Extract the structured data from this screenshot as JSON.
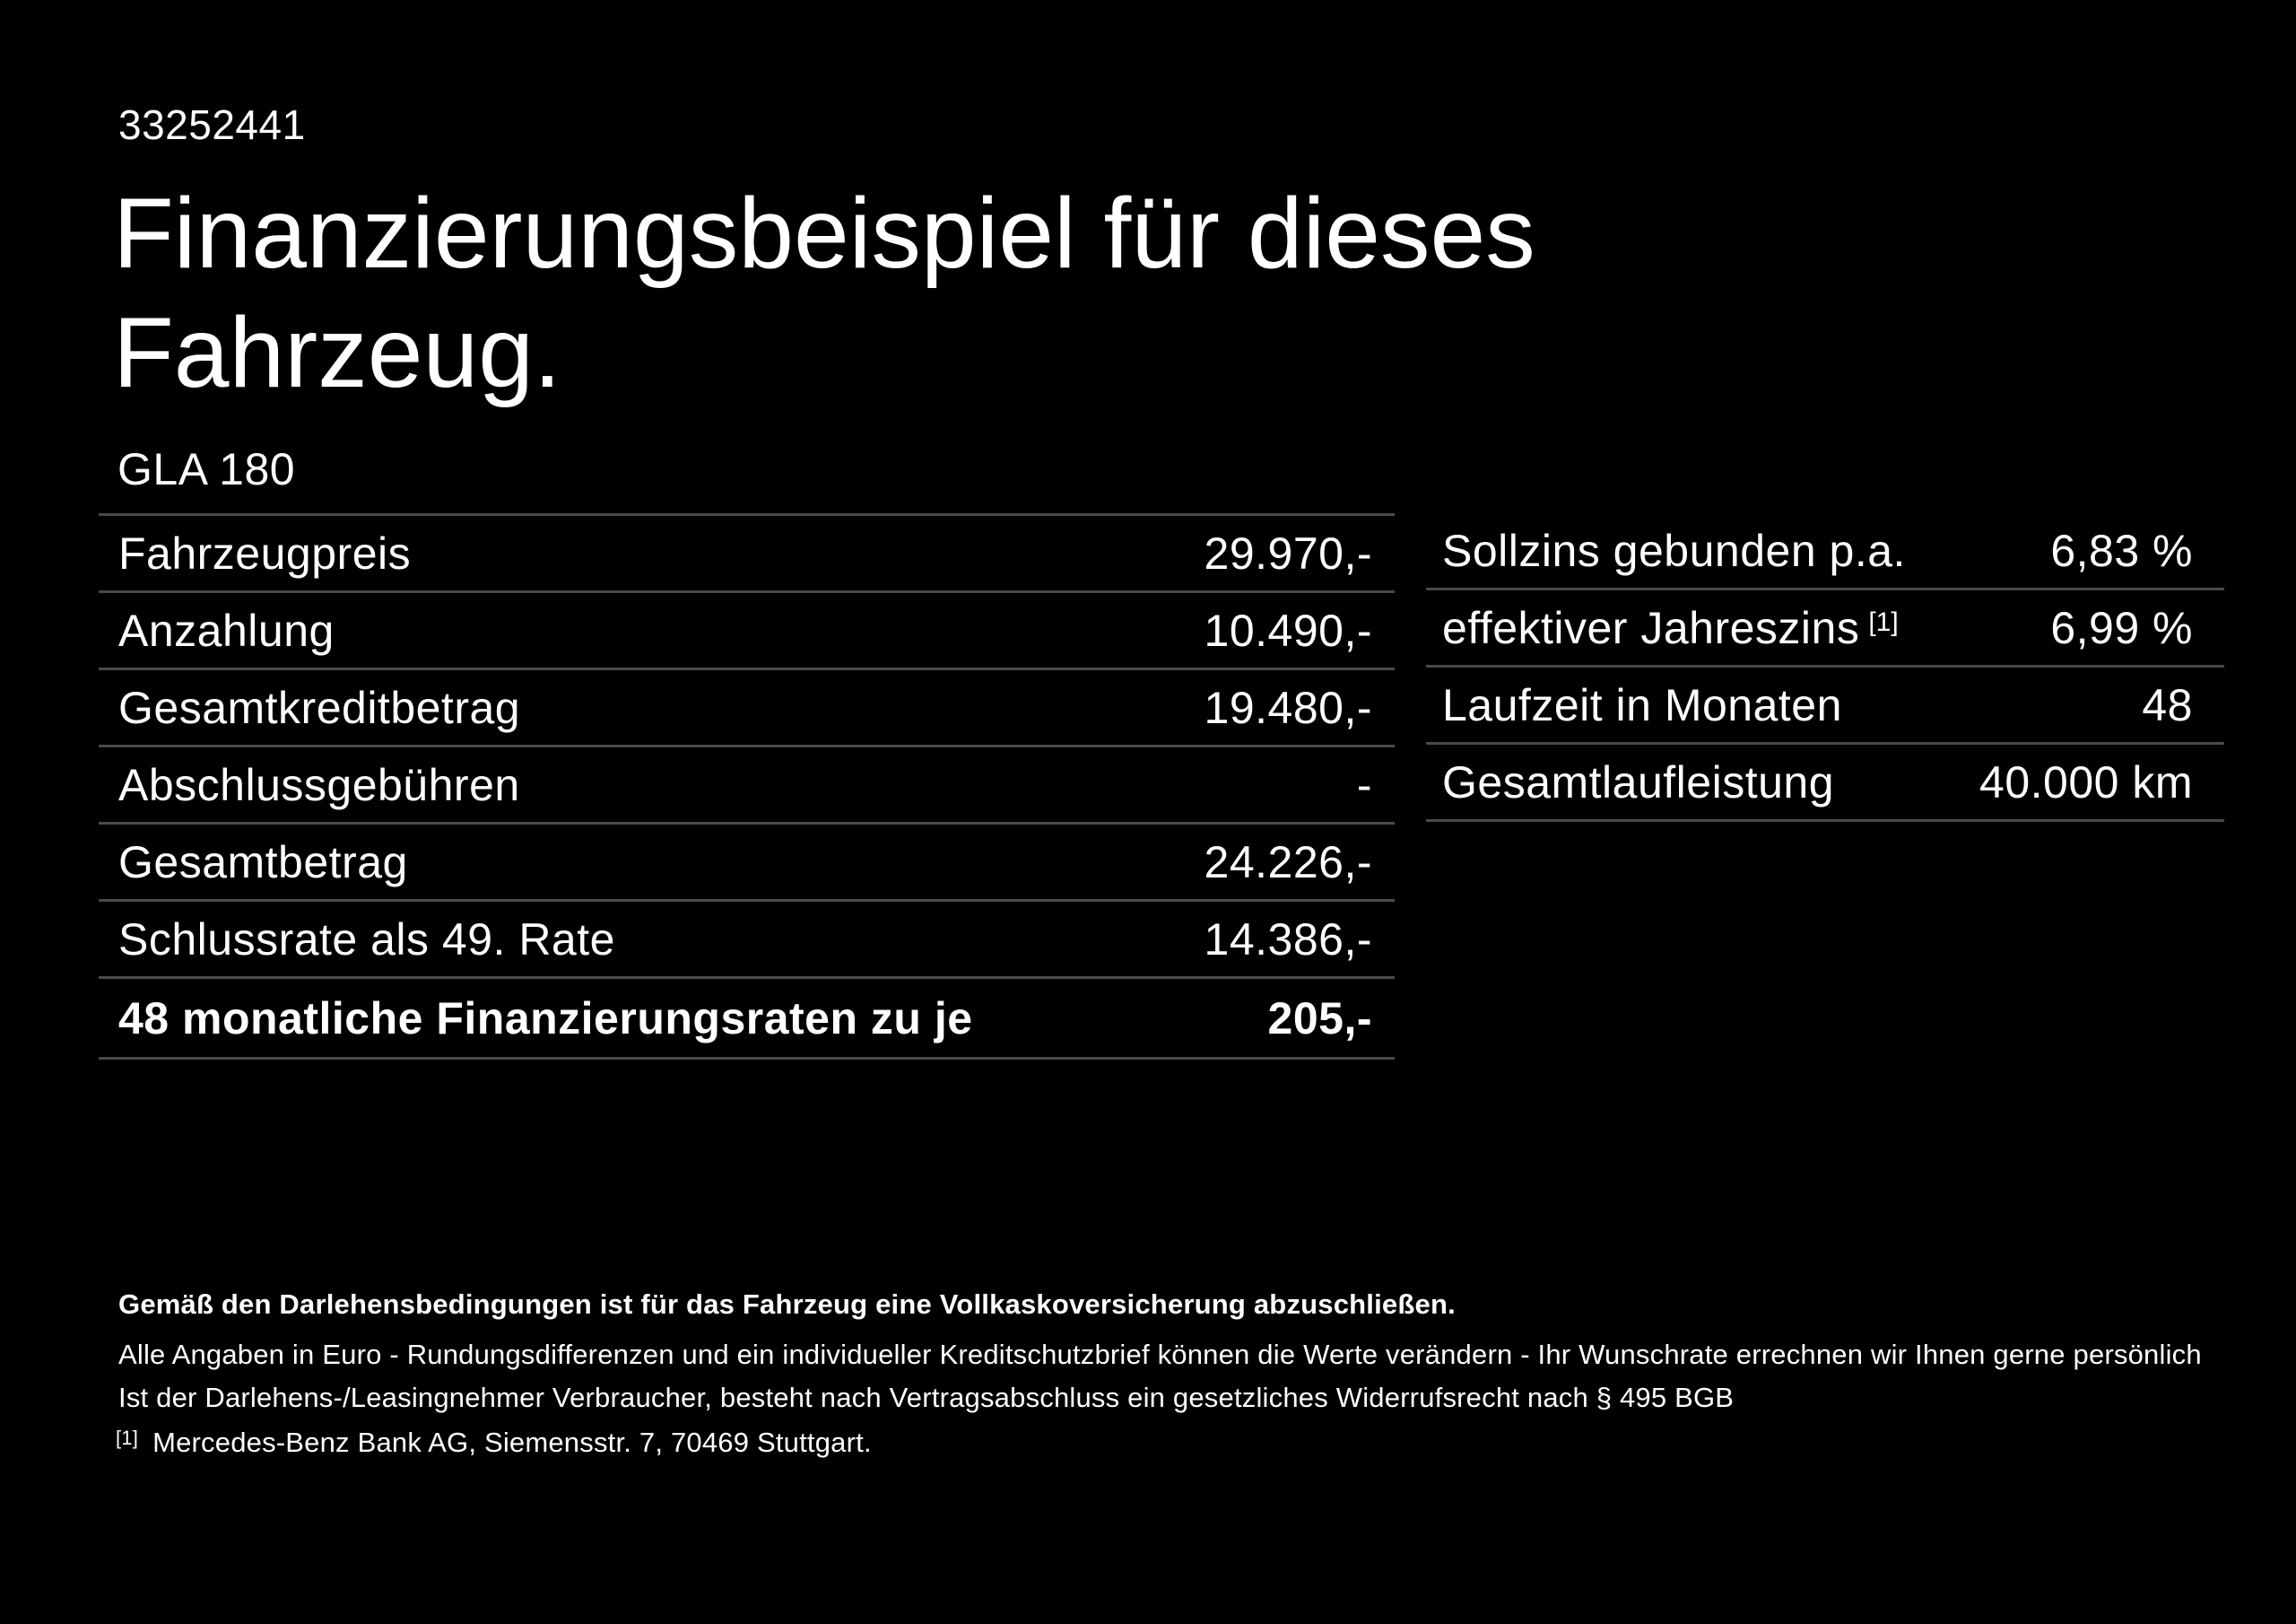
{
  "page": {
    "background_color": "#000000",
    "text_color": "#ffffff",
    "divider_color": "#4a4a4a"
  },
  "header": {
    "vehicle_id": "33252441",
    "title": "Finanzierungsbeispiel für dieses Fahrzeug.",
    "model": "GLA 180"
  },
  "financing_table": {
    "rows": [
      {
        "label": "Fahrzeugpreis",
        "value": "29.970,-"
      },
      {
        "label": "Anzahlung",
        "value": "10.490,-"
      },
      {
        "label": "Gesamtkreditbetrag",
        "value": "19.480,-"
      },
      {
        "label": "Abschlussgebühren",
        "value": "-"
      },
      {
        "label": "Gesamtbetrag",
        "value": "24.226,-"
      },
      {
        "label": "Schlussrate als 49. Rate",
        "value": "14.386,-"
      },
      {
        "label": "48 monatliche Finanzierungsraten zu je",
        "value": "205,-"
      }
    ]
  },
  "conditions_table": {
    "rows": [
      {
        "label": "Sollzins gebunden p.a.",
        "sup": "",
        "value": "6,83 %"
      },
      {
        "label": "effektiver Jahreszins",
        "sup": "[1]",
        "value": "6,99 %"
      },
      {
        "label": "Laufzeit in Monaten",
        "sup": "",
        "value": "48"
      },
      {
        "label": "Gesamtlaufleistung",
        "sup": "",
        "value": "40.000 km"
      }
    ]
  },
  "footer": {
    "insurance_note": "Gemäß den Darlehensbedingungen ist für das Fahrzeug eine Vollkaskoversicherung abzuschließen.",
    "note_line1": "Alle Angaben in Euro - Rundungsdifferenzen und ein individueller Kreditschutzbrief können die Werte verändern - Ihr Wunschrate errechnen wir Ihnen gerne persönlich",
    "note_line2": "Ist der Darlehens-/Leasingnehmer Verbraucher, besteht nach Vertragsabschluss ein gesetzliches Widerrufsrecht nach § 495 BGB",
    "footnote_marker": "[1]",
    "footnote_text": "Mercedes-Benz Bank AG, Siemensstr. 7, 70469 Stuttgart."
  }
}
